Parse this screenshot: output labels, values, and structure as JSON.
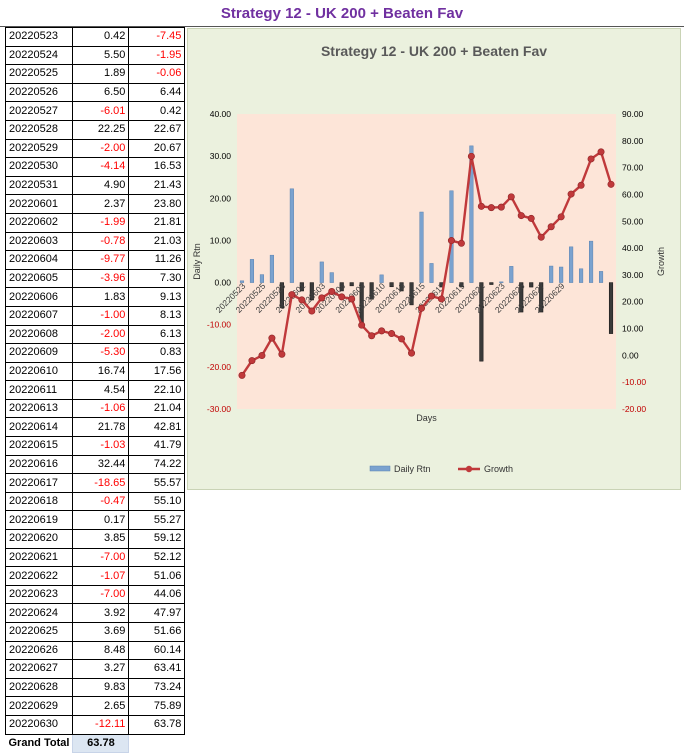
{
  "page_title": "Strategy 12 - UK 200 + Beaten Fav",
  "table": {
    "rows": [
      {
        "date": "20220523",
        "rtn": "0.42",
        "growth": "-7.45"
      },
      {
        "date": "20220524",
        "rtn": "5.50",
        "growth": "-1.95"
      },
      {
        "date": "20220525",
        "rtn": "1.89",
        "growth": "-0.06"
      },
      {
        "date": "20220526",
        "rtn": "6.50",
        "growth": "6.44"
      },
      {
        "date": "20220527",
        "rtn": "-6.01",
        "growth": "0.42"
      },
      {
        "date": "20220528",
        "rtn": "22.25",
        "growth": "22.67"
      },
      {
        "date": "20220529",
        "rtn": "-2.00",
        "growth": "20.67"
      },
      {
        "date": "20220530",
        "rtn": "-4.14",
        "growth": "16.53"
      },
      {
        "date": "20220531",
        "rtn": "4.90",
        "growth": "21.43"
      },
      {
        "date": "20220601",
        "rtn": "2.37",
        "growth": "23.80"
      },
      {
        "date": "20220602",
        "rtn": "-1.99",
        "growth": "21.81"
      },
      {
        "date": "20220603",
        "rtn": "-0.78",
        "growth": "21.03"
      },
      {
        "date": "20220604",
        "rtn": "-9.77",
        "growth": "11.26"
      },
      {
        "date": "20220605",
        "rtn": "-3.96",
        "growth": "7.30"
      },
      {
        "date": "20220606",
        "rtn": "1.83",
        "growth": "9.13"
      },
      {
        "date": "20220607",
        "rtn": "-1.00",
        "growth": "8.13"
      },
      {
        "date": "20220608",
        "rtn": "-2.00",
        "growth": "6.13"
      },
      {
        "date": "20220609",
        "rtn": "-5.30",
        "growth": "0.83"
      },
      {
        "date": "20220610",
        "rtn": "16.74",
        "growth": "17.56"
      },
      {
        "date": "20220611",
        "rtn": "4.54",
        "growth": "22.10"
      },
      {
        "date": "20220613",
        "rtn": "-1.06",
        "growth": "21.04"
      },
      {
        "date": "20220614",
        "rtn": "21.78",
        "growth": "42.81"
      },
      {
        "date": "20220615",
        "rtn": "-1.03",
        "growth": "41.79"
      },
      {
        "date": "20220616",
        "rtn": "32.44",
        "growth": "74.22"
      },
      {
        "date": "20220617",
        "rtn": "-18.65",
        "growth": "55.57"
      },
      {
        "date": "20220618",
        "rtn": "-0.47",
        "growth": "55.10"
      },
      {
        "date": "20220619",
        "rtn": "0.17",
        "growth": "55.27"
      },
      {
        "date": "20220620",
        "rtn": "3.85",
        "growth": "59.12"
      },
      {
        "date": "20220621",
        "rtn": "-7.00",
        "growth": "52.12"
      },
      {
        "date": "20220622",
        "rtn": "-1.07",
        "growth": "51.06"
      },
      {
        "date": "20220623",
        "rtn": "-7.00",
        "growth": "44.06"
      },
      {
        "date": "20220624",
        "rtn": "3.92",
        "growth": "47.97"
      },
      {
        "date": "20220625",
        "rtn": "3.69",
        "growth": "51.66"
      },
      {
        "date": "20220626",
        "rtn": "8.48",
        "growth": "60.14"
      },
      {
        "date": "20220627",
        "rtn": "3.27",
        "growth": "63.41"
      },
      {
        "date": "20220628",
        "rtn": "9.83",
        "growth": "73.24"
      },
      {
        "date": "20220629",
        "rtn": "2.65",
        "growth": "75.89"
      },
      {
        "date": "20220630",
        "rtn": "-12.11",
        "growth": "63.78"
      }
    ],
    "total_label": "Grand Total",
    "total_value": "63.78"
  },
  "chart_data": {
    "type": "bar+line",
    "title": "Strategy 12 - UK 200 + Beaten Fav",
    "xlabel": "Days",
    "ylabel_left": "Daily Rtn",
    "ylabel_right": "Growth",
    "ylim_left": [
      -30,
      40
    ],
    "ylim_right": [
      -20,
      90
    ],
    "yticks_left": [
      "40.00",
      "30.00",
      "20.00",
      "10.00",
      "0.00",
      "-10.00",
      "-20.00",
      "-30.00"
    ],
    "yticks_right": [
      "90.00",
      "80.00",
      "70.00",
      "60.00",
      "50.00",
      "40.00",
      "30.00",
      "20.00",
      "10.00",
      "0.00",
      "-10.00",
      "-20.00"
    ],
    "x_tick_labels": [
      "20220523",
      "20220525",
      "20220528",
      "20220601",
      "20220603",
      "20220606",
      "20220608",
      "20220610",
      "20220613",
      "20220615",
      "20220617",
      "20220619",
      "20220621",
      "20220623",
      "20220625",
      "20220627",
      "20220629"
    ],
    "x_tick_indices": [
      0,
      2,
      4,
      6,
      8,
      10,
      12,
      14,
      16,
      18,
      20,
      22,
      24,
      26,
      28,
      30,
      32
    ],
    "categories": [
      "20220523",
      "20220524",
      "20220525",
      "20220526",
      "20220527",
      "20220528",
      "20220529",
      "20220530",
      "20220531",
      "20220601",
      "20220602",
      "20220603",
      "20220604",
      "20220605",
      "20220606",
      "20220607",
      "20220608",
      "20220609",
      "20220610",
      "20220611",
      "20220613",
      "20220614",
      "20220615",
      "20220616",
      "20220617",
      "20220618",
      "20220619",
      "20220620",
      "20220621",
      "20220622",
      "20220623",
      "20220624",
      "20220625",
      "20220626",
      "20220627",
      "20220628",
      "20220629",
      "20220630"
    ],
    "series": [
      {
        "name": "Daily Rtn",
        "type": "bar",
        "axis": "left",
        "values": [
          0.42,
          5.5,
          1.89,
          6.5,
          -6.01,
          22.25,
          -2.0,
          -4.14,
          4.9,
          2.37,
          -1.99,
          -0.78,
          -9.77,
          -3.96,
          1.83,
          -1.0,
          -2.0,
          -5.3,
          16.74,
          4.54,
          -1.06,
          21.78,
          -1.03,
          32.44,
          -18.65,
          -0.47,
          0.17,
          3.85,
          -7.0,
          -1.07,
          -7.0,
          3.92,
          3.69,
          8.48,
          3.27,
          9.83,
          2.65,
          -12.11
        ]
      },
      {
        "name": "Growth",
        "type": "line",
        "axis": "right",
        "values": [
          -7.45,
          -1.95,
          -0.06,
          6.44,
          0.42,
          22.67,
          20.67,
          16.53,
          21.43,
          23.8,
          21.81,
          21.03,
          11.26,
          7.3,
          9.13,
          8.13,
          6.13,
          0.83,
          17.56,
          22.1,
          21.04,
          42.81,
          41.79,
          74.22,
          55.57,
          55.1,
          55.27,
          59.12,
          52.12,
          51.06,
          44.06,
          47.97,
          51.66,
          60.14,
          63.41,
          73.24,
          75.89,
          63.78
        ]
      }
    ],
    "grid": false,
    "legend": "bottom",
    "colors": {
      "bar_pos": "#7aa2cf",
      "bar_neg": "#3a3a3a",
      "line": "#c0393b",
      "plot_bg": "#fde5d8",
      "chart_bg": "#ebf1de",
      "left_tick": "#000000",
      "right_tick_pos": "#000000",
      "neg_tick": "#c00000"
    }
  }
}
